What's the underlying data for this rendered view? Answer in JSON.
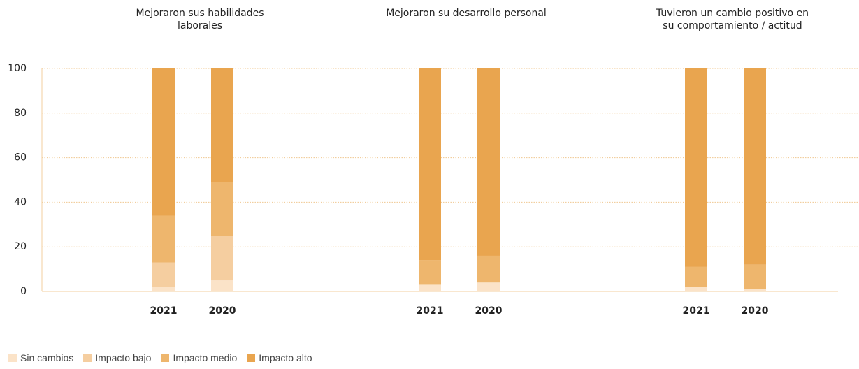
{
  "chart_data": {
    "type": "stacked_bar",
    "groups": [
      "Mejoraron sus habilidades laborales",
      "Mejoraron su desarrollo personal",
      "Tuvieron un cambio positivo en su comportamiento / actitud"
    ],
    "categories": [
      "2021",
      "2020",
      "2021",
      "2020",
      "2021",
      "2020"
    ],
    "series": [
      {
        "name": "Sin cambios",
        "color": "#fbe3c8",
        "values": [
          2,
          5,
          3,
          4,
          2,
          1
        ]
      },
      {
        "name": "Impacto bajo",
        "color": "#f5cea0",
        "values": [
          11,
          20,
          0,
          0,
          0,
          0
        ]
      },
      {
        "name": "Impacto medio",
        "color": "#eeb66d",
        "values": [
          21,
          24,
          11,
          12,
          9,
          11
        ]
      },
      {
        "name": "Impacto alto",
        "color": "#e9a54f",
        "values": [
          66,
          51,
          86,
          84,
          89,
          88
        ]
      }
    ],
    "ylim": [
      0,
      100
    ],
    "yticks": [
      0,
      20,
      40,
      60,
      80,
      100
    ],
    "grid": true
  }
}
